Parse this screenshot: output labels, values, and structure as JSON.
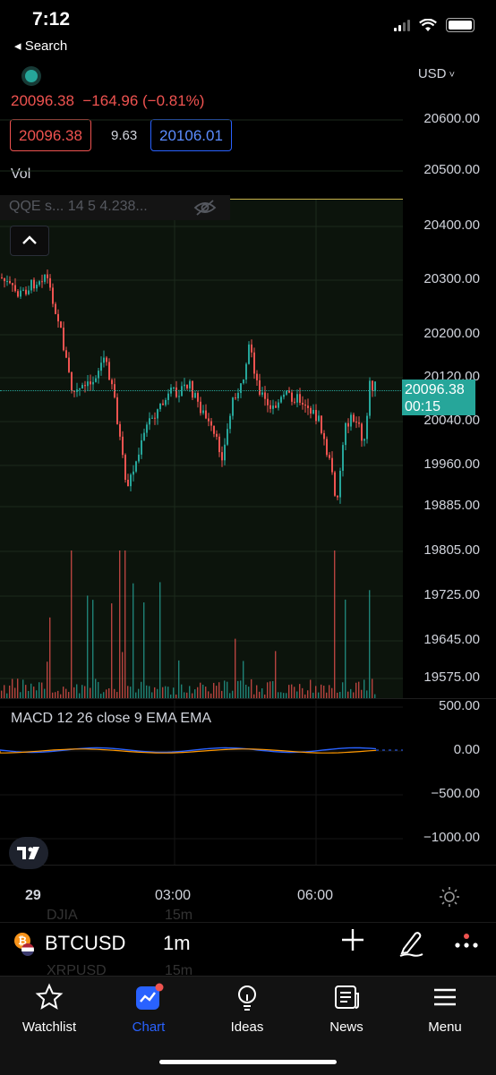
{
  "status_bar": {
    "time": "7:12",
    "back_label": "◂ Search"
  },
  "chart": {
    "currency": "USD",
    "last_price": "20096.38",
    "change": "−164.96 (−0.81%)",
    "bid": "20096.38",
    "spread": "9.63",
    "ask": "20106.01",
    "vol_label": "Vol",
    "qqe_label": "QQE s...  14 5 4.238...",
    "price_tag_price": "20096.38",
    "price_tag_timer": "00:15",
    "price_axis": [
      "20600.00",
      "20500.00",
      "20400.00",
      "20300.00",
      "20200.00",
      "20120.00",
      "20040.00",
      "19960.00",
      "19885.00",
      "19805.00",
      "19725.00",
      "19645.00",
      "19575.00"
    ],
    "macd_label": "MACD  12  26  close  9  EMA  EMA",
    "macd_axis": [
      "500.00",
      "0.00",
      "−500.00",
      "−1000.00"
    ],
    "time_axis": [
      "29",
      "03:00",
      "06:00"
    ],
    "colors": {
      "up": "#26a69a",
      "down": "#ef5350",
      "accent": "#2962ff"
    }
  },
  "symbol_bar": {
    "ghost_above": {
      "symbol": "DJIA",
      "interval": "15m"
    },
    "symbol": "BTCUSD",
    "interval": "1m",
    "ghost_below": {
      "symbol": "XRPUSD",
      "interval": "15m"
    }
  },
  "tabs": [
    {
      "label": "Watchlist",
      "icon": "star-icon"
    },
    {
      "label": "Chart",
      "icon": "chart-icon",
      "active": true
    },
    {
      "label": "Ideas",
      "icon": "lightbulb-icon"
    },
    {
      "label": "News",
      "icon": "newspaper-icon"
    },
    {
      "label": "Menu",
      "icon": "hamburger-icon"
    }
  ]
}
